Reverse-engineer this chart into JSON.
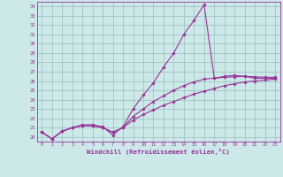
{
  "x": [
    0,
    1,
    2,
    3,
    4,
    5,
    6,
    7,
    8,
    9,
    10,
    11,
    12,
    13,
    14,
    15,
    16,
    17,
    18,
    19,
    20,
    21,
    22,
    23
  ],
  "line1": [
    20.5,
    19.8,
    20.6,
    21.0,
    21.3,
    21.3,
    21.1,
    20.2,
    21.1,
    23.0,
    24.5,
    25.8,
    27.5,
    29.0,
    31.0,
    32.5,
    34.2,
    26.3,
    26.5,
    26.6,
    26.5,
    26.3,
    26.3,
    26.3
  ],
  "line2": [
    20.5,
    19.8,
    20.6,
    21.0,
    21.2,
    21.2,
    21.0,
    20.5,
    21.0,
    22.2,
    23.0,
    23.8,
    24.4,
    25.0,
    25.5,
    25.9,
    26.2,
    26.3,
    26.4,
    26.45,
    26.5,
    26.45,
    26.4,
    26.4
  ],
  "line3": [
    20.5,
    19.8,
    20.6,
    21.0,
    21.2,
    21.2,
    21.0,
    20.5,
    21.0,
    21.8,
    22.4,
    22.9,
    23.4,
    23.8,
    24.2,
    24.6,
    24.9,
    25.2,
    25.5,
    25.7,
    25.9,
    26.0,
    26.1,
    26.2
  ],
  "line_color": "#993399",
  "bg_color": "#cce8e8",
  "grid_color": "#9abcbc",
  "ylim": [
    19.5,
    34.5
  ],
  "xlim": [
    -0.5,
    23.5
  ],
  "yticks": [
    20,
    21,
    22,
    23,
    24,
    25,
    26,
    27,
    28,
    29,
    30,
    31,
    32,
    33,
    34
  ],
  "xticks": [
    0,
    1,
    2,
    3,
    4,
    5,
    6,
    7,
    8,
    9,
    10,
    11,
    12,
    13,
    14,
    15,
    16,
    17,
    18,
    19,
    20,
    21,
    22,
    23
  ],
  "xlabel": "Windchill (Refroidissement éolien,°C)",
  "marker": "D",
  "marker_size": 1.8,
  "line_width": 0.8
}
